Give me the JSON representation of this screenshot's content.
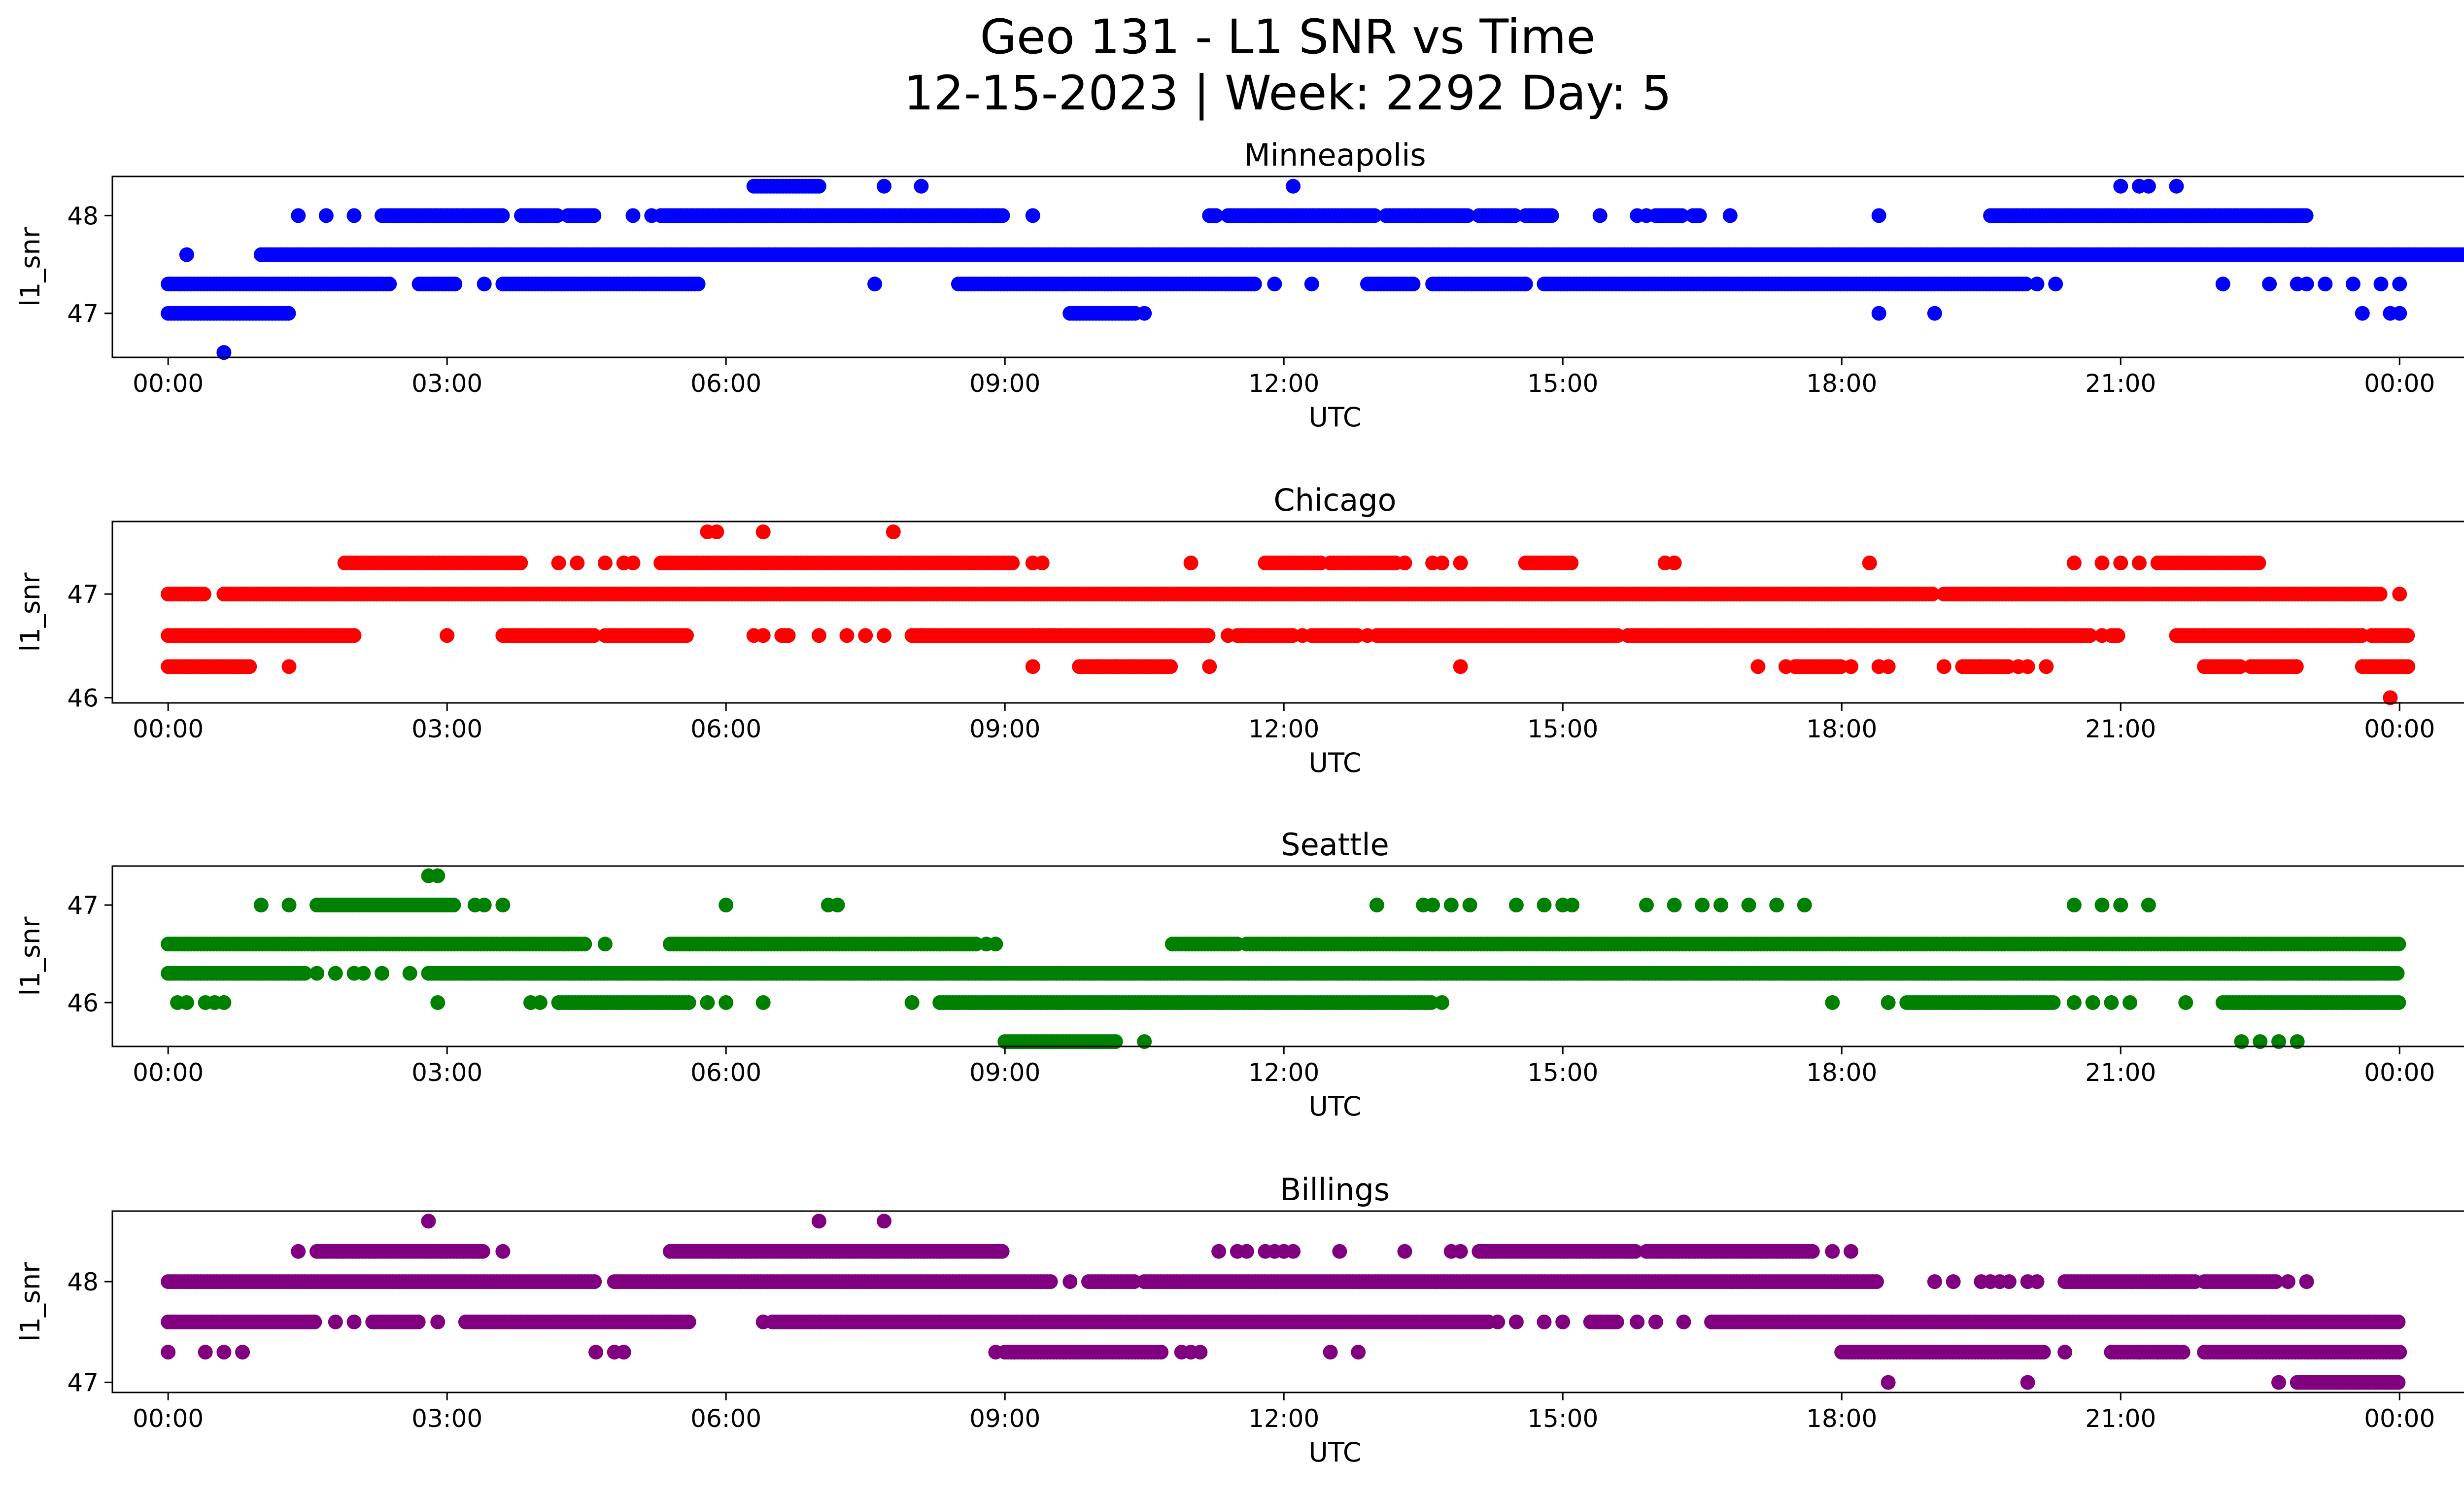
{
  "figure": {
    "title_line1": "Geo 131 - L1 SNR vs Time",
    "title_line2": "12-15-2023 | Week: 2292 Day: 5"
  },
  "chart_data": [
    {
      "type": "scatter",
      "title": "Minneapolis",
      "xlabel": "UTC",
      "ylabel": "l1_snr",
      "color": "#0000ff",
      "xlim_hours": [
        -0.6,
        25.7
      ],
      "ylim": [
        46.55,
        48.4
      ],
      "yticks": [
        47,
        48
      ],
      "xtick_labels": [
        "00:00",
        "03:00",
        "06:00",
        "09:00",
        "12:00",
        "15:00",
        "18:00",
        "21:00",
        "00:00"
      ],
      "levels": [
        {
          "y": 48.3,
          "ranges": [
            [
              6.3,
              7.0
            ]
          ],
          "points": [
            7.7,
            8.1,
            12.1,
            21.0,
            21.2,
            21.3,
            21.6
          ]
        },
        {
          "y": 48.0,
          "ranges": [
            [
              2.3,
              3.6
            ],
            [
              3.8,
              4.2
            ],
            [
              4.3,
              4.6
            ],
            [
              5.3,
              9.0
            ],
            [
              11.2,
              11.3
            ],
            [
              11.4,
              13.0
            ],
            [
              13.1,
              14.0
            ],
            [
              14.1,
              14.5
            ],
            [
              14.6,
              14.9
            ],
            [
              16.0,
              16.3
            ],
            [
              16.4,
              16.5
            ],
            [
              19.6,
              23.0
            ]
          ],
          "points": [
            1.4,
            1.7,
            2.0,
            5.0,
            5.2,
            9.3,
            15.4,
            15.8,
            15.9,
            16.8,
            18.4
          ]
        },
        {
          "y": 47.6,
          "ranges": [
            [
              1.0,
              25.0
            ]
          ],
          "points": [
            0.2
          ]
        },
        {
          "y": 47.3,
          "ranges": [
            [
              0.0,
              2.4
            ],
            [
              2.7,
              3.1
            ],
            [
              3.6,
              5.7
            ],
            [
              8.5,
              11.7
            ],
            [
              12.9,
              13.4
            ],
            [
              13.6,
              14.6
            ],
            [
              14.8,
              20.0
            ]
          ],
          "points": [
            3.4,
            7.6,
            11.9,
            12.3,
            14.6,
            20.1,
            20.3,
            22.1,
            22.6,
            22.9,
            23.0,
            23.2,
            23.5,
            23.8,
            24.0
          ]
        },
        {
          "y": 47.0,
          "ranges": [
            [
              0.0,
              1.3
            ],
            [
              9.7,
              10.4
            ]
          ],
          "points": [
            10.5,
            18.4,
            19.0,
            23.6,
            23.9,
            24.0
          ]
        },
        {
          "y": 46.6,
          "ranges": [],
          "points": [
            0.6
          ]
        }
      ]
    },
    {
      "type": "scatter",
      "title": "Chicago",
      "xlabel": "UTC",
      "ylabel": "l1_snr",
      "color": "#ff0000",
      "xlim_hours": [
        -0.6,
        25.7
      ],
      "ylim": [
        45.95,
        47.7
      ],
      "yticks": [
        46,
        47
      ],
      "xtick_labels": [
        "00:00",
        "03:00",
        "06:00",
        "09:00",
        "12:00",
        "15:00",
        "18:00",
        "21:00",
        "00:00"
      ],
      "levels": [
        {
          "y": 47.6,
          "ranges": [],
          "points": [
            5.8,
            5.9,
            6.4,
            7.8
          ]
        },
        {
          "y": 47.3,
          "ranges": [
            [
              1.9,
              3.8
            ],
            [
              5.3,
              9.1
            ],
            [
              11.8,
              12.4
            ],
            [
              12.5,
              13.2
            ],
            [
              14.6,
              15.1
            ],
            [
              21.4,
              22.5
            ]
          ],
          "points": [
            4.2,
            4.4,
            4.7,
            4.9,
            5.0,
            9.3,
            9.4,
            11.0,
            13.3,
            13.6,
            13.7,
            13.9,
            16.1,
            16.2,
            18.3,
            20.5,
            20.8,
            21.0,
            21.2
          ]
        },
        {
          "y": 47.0,
          "ranges": [
            [
              0.0,
              0.4
            ],
            [
              0.6,
              19.0
            ],
            [
              19.1,
              23.8
            ]
          ],
          "points": [
            24.0
          ]
        },
        {
          "y": 46.6,
          "ranges": [
            [
              0.0,
              2.0
            ],
            [
              3.6,
              4.6
            ],
            [
              4.7,
              5.6
            ],
            [
              6.6,
              6.7
            ],
            [
              8.0,
              11.2
            ],
            [
              11.5,
              12.1
            ],
            [
              12.3,
              12.8
            ],
            [
              13.0,
              15.6
            ],
            [
              15.7,
              20.7
            ],
            [
              20.9,
              21.0
            ],
            [
              21.6,
              23.6
            ],
            [
              23.7,
              24.1
            ]
          ],
          "points": [
            2.0,
            3.0,
            6.3,
            6.4,
            7.0,
            7.3,
            7.5,
            7.7,
            8.1,
            9.3,
            9.5,
            11.4,
            12.2,
            12.9,
            20.8
          ]
        },
        {
          "y": 46.3,
          "ranges": [
            [
              0.0,
              0.9
            ],
            [
              9.8,
              10.8
            ],
            [
              17.5,
              18.0
            ],
            [
              19.3,
              19.8
            ],
            [
              21.9,
              22.3
            ],
            [
              22.4,
              22.9
            ],
            [
              23.6,
              24.1
            ]
          ],
          "points": [
            1.3,
            9.3,
            10.0,
            10.2,
            10.4,
            11.2,
            13.9,
            17.1,
            17.4,
            18.1,
            18.4,
            18.5,
            19.1,
            19.5,
            19.9,
            20.0,
            20.2
          ]
        },
        {
          "y": 46.0,
          "ranges": [],
          "points": [
            23.9
          ]
        }
      ]
    },
    {
      "type": "scatter",
      "title": "Seattle",
      "xlabel": "UTC",
      "ylabel": "l1_snr",
      "color": "#008000",
      "xlim_hours": [
        -0.6,
        25.7
      ],
      "ylim": [
        45.55,
        47.4
      ],
      "yticks": [
        46,
        47
      ],
      "xtick_labels": [
        "00:00",
        "03:00",
        "06:00",
        "09:00",
        "12:00",
        "15:00",
        "18:00",
        "21:00",
        "00:00"
      ],
      "levels": [
        {
          "y": 47.3,
          "ranges": [],
          "points": [
            2.8,
            2.9
          ]
        },
        {
          "y": 47.0,
          "ranges": [
            [
              1.6,
              3.1
            ]
          ],
          "points": [
            1.0,
            1.3,
            3.3,
            3.4,
            3.6,
            6.0,
            7.1,
            7.2,
            13.0,
            13.5,
            13.6,
            13.8,
            14.0,
            14.5,
            14.8,
            15.0,
            15.1,
            15.9,
            16.2,
            16.5,
            16.7,
            17.0,
            17.3,
            17.6,
            20.5,
            20.8,
            21.0,
            21.3
          ]
        },
        {
          "y": 46.6,
          "ranges": [
            [
              0.0,
              4.5
            ],
            [
              5.4,
              8.7
            ],
            [
              10.8,
              11.5
            ],
            [
              11.6,
              24.0
            ]
          ],
          "points": [
            4.7,
            8.8,
            8.9
          ]
        },
        {
          "y": 46.3,
          "ranges": [
            [
              0.0,
              1.5
            ],
            [
              2.8,
              24.0
            ]
          ],
          "points": [
            1.6,
            1.8,
            2.0,
            2.1,
            2.3,
            2.6
          ]
        },
        {
          "y": 46.0,
          "ranges": [
            [
              4.2,
              5.6
            ],
            [
              8.3,
              13.6
            ],
            [
              18.7,
              20.3
            ],
            [
              22.1,
              24.0
            ]
          ],
          "points": [
            0.1,
            0.2,
            0.4,
            0.5,
            0.6,
            2.9,
            3.9,
            4.0,
            5.8,
            6.0,
            6.4,
            8.0,
            13.7,
            17.9,
            18.5,
            20.5,
            20.7,
            20.9,
            21.1,
            21.7
          ]
        },
        {
          "y": 45.6,
          "ranges": [
            [
              9.0,
              10.2
            ]
          ],
          "points": [
            10.5,
            22.3,
            22.5,
            22.7,
            22.9
          ]
        }
      ]
    },
    {
      "type": "scatter",
      "title": "Billings",
      "xlabel": "UTC",
      "ylabel": "l1_snr",
      "color": "#800080",
      "xlim_hours": [
        -0.6,
        25.7
      ],
      "ylim": [
        46.9,
        48.7
      ],
      "yticks": [
        47,
        48
      ],
      "xtick_labels": [
        "00:00",
        "03:00",
        "06:00",
        "09:00",
        "12:00",
        "15:00",
        "18:00",
        "21:00",
        "00:00"
      ],
      "levels": [
        {
          "y": 48.6,
          "ranges": [],
          "points": [
            2.8,
            7.0,
            7.7
          ]
        },
        {
          "y": 48.3,
          "ranges": [
            [
              1.6,
              3.4
            ],
            [
              5.4,
              9.0
            ],
            [
              14.1,
              15.8
            ],
            [
              15.9,
              17.7
            ]
          ],
          "points": [
            1.4,
            3.6,
            11.3,
            11.5,
            11.6,
            11.8,
            11.9,
            12.0,
            12.1,
            12.6,
            13.3,
            13.8,
            13.9,
            17.9,
            18.1
          ]
        },
        {
          "y": 48.0,
          "ranges": [
            [
              0.0,
              4.6
            ],
            [
              4.8,
              9.5
            ],
            [
              9.9,
              10.4
            ],
            [
              10.5,
              18.4
            ],
            [
              20.4,
              21.8
            ],
            [
              21.9,
              22.7
            ]
          ],
          "points": [
            9.7,
            19.0,
            19.2,
            19.5,
            19.6,
            19.7,
            19.8,
            20.0,
            20.1,
            22.8,
            23.0
          ]
        },
        {
          "y": 47.6,
          "ranges": [
            [
              0.0,
              1.6
            ],
            [
              2.2,
              2.7
            ],
            [
              3.2,
              5.6
            ],
            [
              6.5,
              14.2
            ],
            [
              15.3,
              15.6
            ],
            [
              16.6,
              24.0
            ]
          ],
          "points": [
            1.8,
            2.0,
            2.9,
            5.0,
            5.2,
            5.4,
            5.6,
            6.4,
            7.0,
            14.3,
            14.5,
            14.8,
            15.0,
            15.4,
            15.8,
            16.0,
            16.3
          ]
        },
        {
          "y": 47.3,
          "ranges": [
            [
              9.0,
              10.7
            ],
            [
              18.0,
              20.2
            ],
            [
              20.9,
              21.7
            ],
            [
              21.9,
              24.0
            ]
          ],
          "points": [
            0.0,
            0.4,
            0.6,
            0.8,
            4.6,
            4.8,
            4.9,
            8.9,
            9.1,
            10.9,
            11.0,
            11.1,
            12.5,
            12.8,
            20.4,
            21.2,
            21.4
          ]
        },
        {
          "y": 47.0,
          "ranges": [
            [
              22.9,
              24.0
            ]
          ],
          "points": [
            18.5,
            20.0,
            22.7
          ]
        }
      ]
    }
  ]
}
